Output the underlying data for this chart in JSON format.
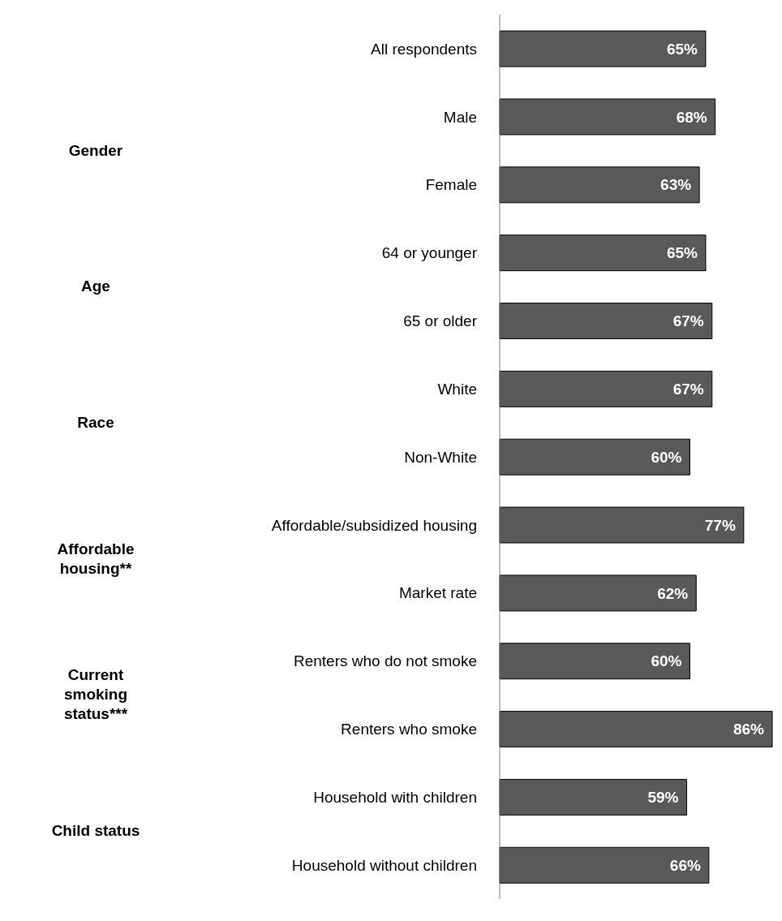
{
  "chart_data": {
    "type": "bar",
    "orientation": "horizontal",
    "categories": [
      "All respondents",
      "Male",
      "Female",
      "64 or younger",
      "65 or older",
      "White",
      "Non-White",
      "Affordable/subsidized  housing",
      "Market rate",
      "Renters who do not smoke",
      "Renters who smoke",
      "Household with children",
      "Household without children"
    ],
    "values": [
      65,
      68,
      63,
      65,
      67,
      67,
      60,
      77,
      62,
      60,
      86,
      59,
      66
    ],
    "value_labels": [
      "65%",
      "68%",
      "63%",
      "65%",
      "67%",
      "67%",
      "60%",
      "77%",
      "62%",
      "60%",
      "86%",
      "59%",
      "66%"
    ],
    "color": "#595959",
    "annotations": [
      "Gender",
      "Age",
      "Race",
      "Affordable housing**",
      "Current smoking status***",
      "Child status"
    ]
  }
}
